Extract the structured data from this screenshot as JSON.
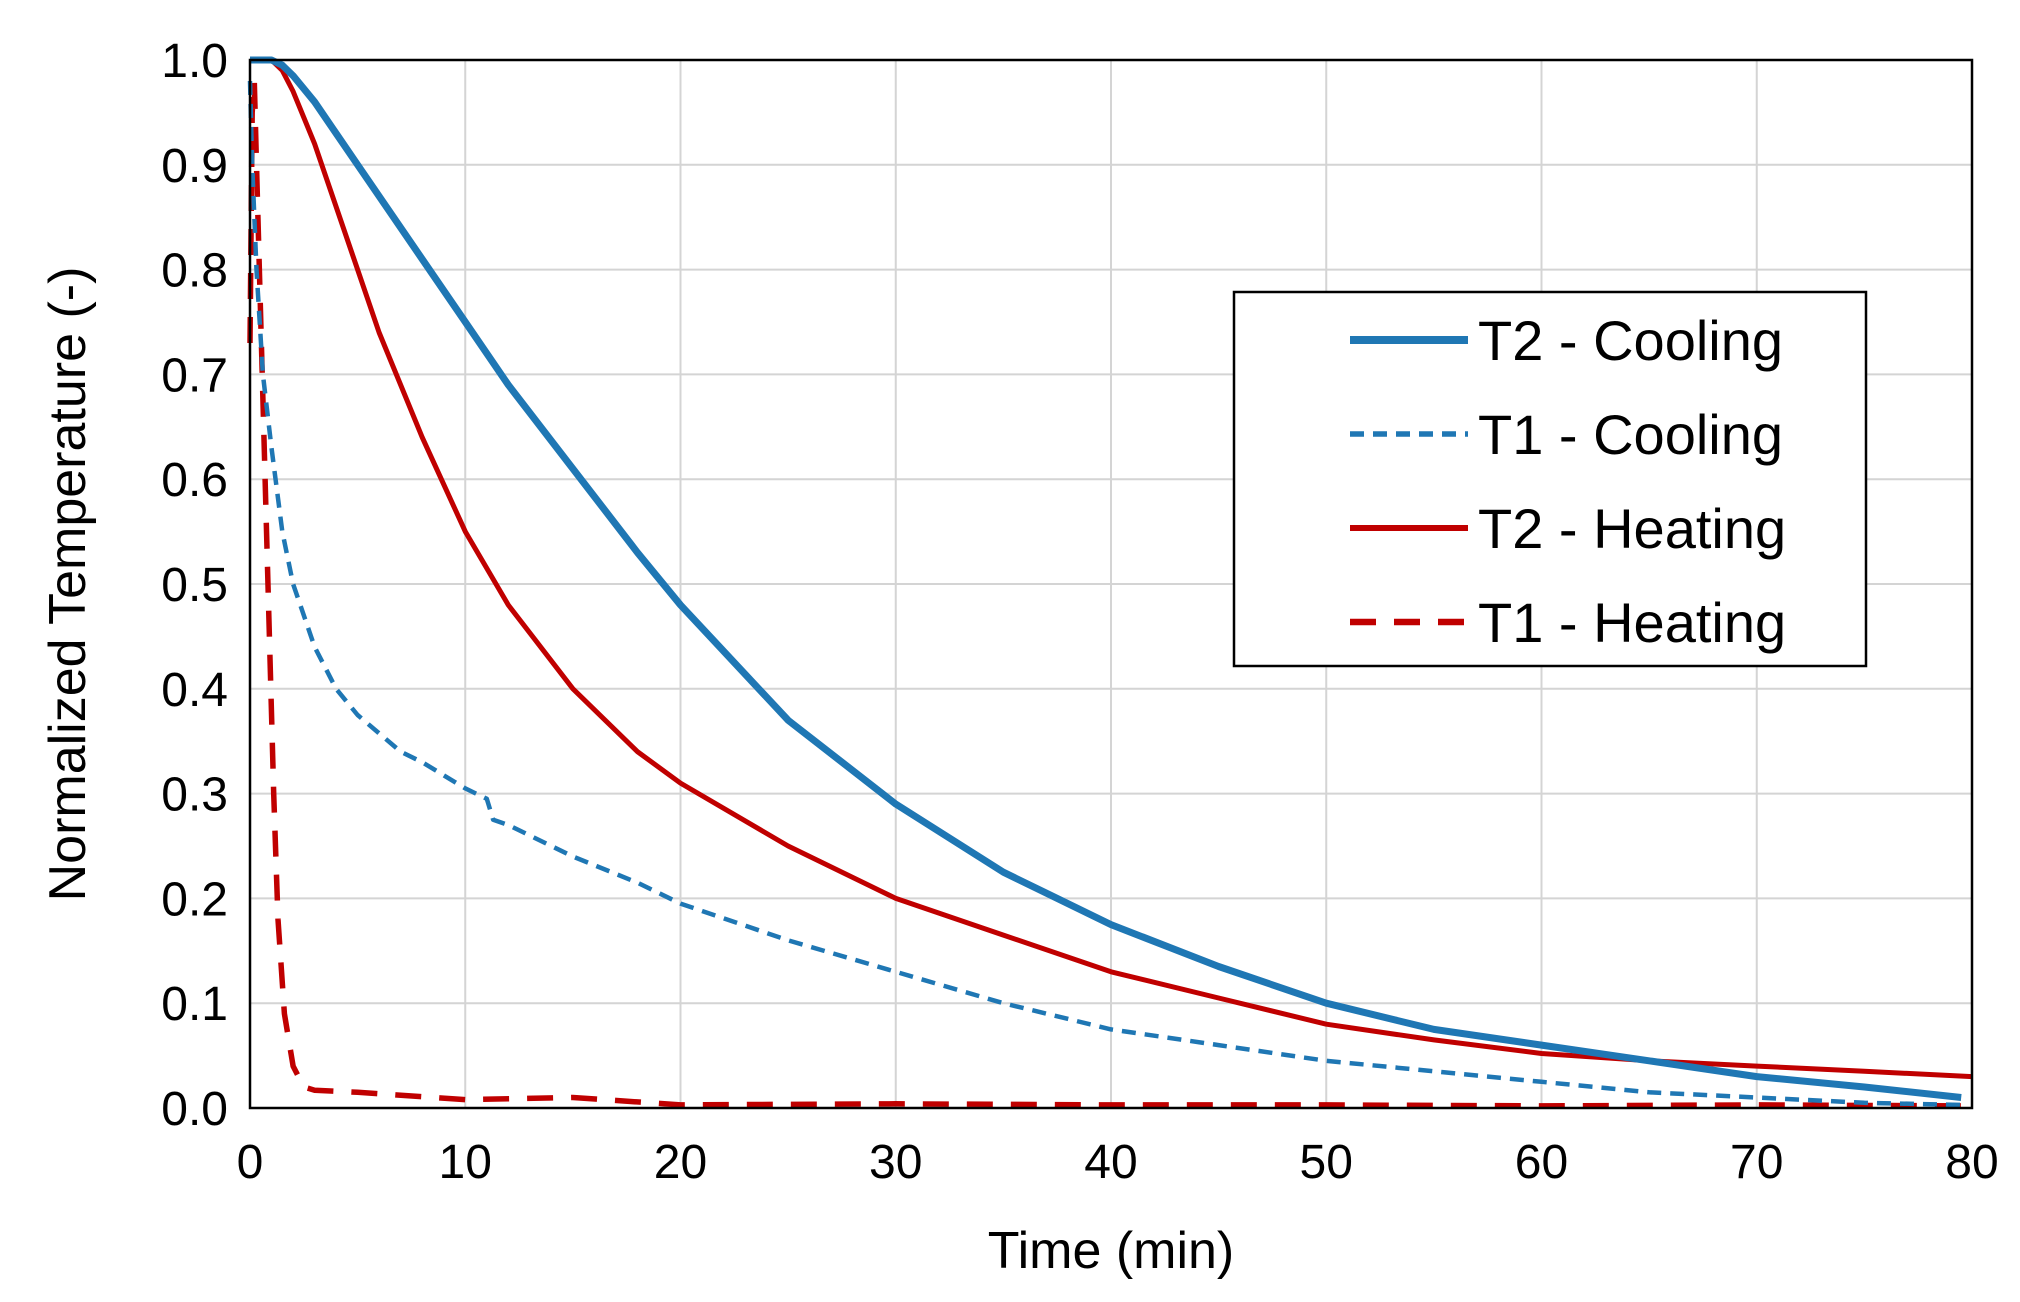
{
  "chart_data": {
    "type": "line",
    "title": "",
    "xlabel": "Time (min)",
    "ylabel": "Normalized  Temperature  (-)",
    "xlim": [
      0,
      80
    ],
    "ylim": [
      0.0,
      1.0
    ],
    "xticks": [
      "0",
      "10",
      "20",
      "30",
      "40",
      "50",
      "60",
      "70",
      "80"
    ],
    "yticks": [
      "0.0",
      "0.1",
      "0.2",
      "0.3",
      "0.4",
      "0.5",
      "0.6",
      "0.7",
      "0.8",
      "0.9",
      "1.0"
    ],
    "grid": true,
    "legend_position": "right",
    "series": [
      {
        "name": "T2 - Cooling",
        "color": "#1f77b4",
        "style": "solid-thick",
        "x": [
          0,
          0.5,
          1,
          1.5,
          2,
          3,
          4,
          5,
          6,
          8,
          10,
          12,
          15,
          18,
          20,
          25,
          30,
          35,
          40,
          45,
          50,
          55,
          60,
          65,
          70,
          75,
          79.5
        ],
        "y": [
          1.0,
          1.0,
          1.0,
          0.995,
          0.985,
          0.96,
          0.93,
          0.9,
          0.87,
          0.81,
          0.75,
          0.69,
          0.61,
          0.53,
          0.48,
          0.37,
          0.29,
          0.225,
          0.175,
          0.135,
          0.1,
          0.075,
          0.06,
          0.045,
          0.03,
          0.02,
          0.01
        ]
      },
      {
        "name": "T1 - Cooling",
        "color": "#1f77b4",
        "style": "dashed-fine",
        "x": [
          0,
          0.1,
          0.3,
          0.6,
          1,
          1.5,
          2,
          3,
          4,
          5,
          7,
          8,
          10,
          11,
          11.3,
          12,
          15,
          18,
          20,
          25,
          30,
          35,
          40,
          45,
          50,
          55,
          60,
          65,
          70,
          75,
          79.5
        ],
        "y": [
          0.98,
          0.9,
          0.8,
          0.7,
          0.63,
          0.55,
          0.5,
          0.44,
          0.4,
          0.375,
          0.34,
          0.33,
          0.305,
          0.295,
          0.275,
          0.27,
          0.24,
          0.215,
          0.195,
          0.16,
          0.13,
          0.1,
          0.075,
          0.06,
          0.045,
          0.035,
          0.025,
          0.015,
          0.01,
          0.005,
          0.003
        ]
      },
      {
        "name": "T2 - Heating",
        "color": "#c00000",
        "style": "solid",
        "x": [
          0,
          0.3,
          0.6,
          1,
          1.5,
          2,
          3,
          4,
          5,
          6,
          8,
          10,
          12,
          15,
          18,
          20,
          25,
          30,
          35,
          40,
          45,
          50,
          55,
          60,
          65,
          70,
          75,
          80
        ],
        "y": [
          1.0,
          1.0,
          1.0,
          1.0,
          0.99,
          0.97,
          0.92,
          0.86,
          0.8,
          0.74,
          0.64,
          0.55,
          0.48,
          0.4,
          0.34,
          0.31,
          0.25,
          0.2,
          0.165,
          0.13,
          0.105,
          0.08,
          0.065,
          0.052,
          0.045,
          0.04,
          0.035,
          0.03
        ]
      },
      {
        "name": "T1 - Heating",
        "color": "#c00000",
        "style": "dashed",
        "x": [
          0,
          0.1,
          0.2,
          0.3,
          0.5,
          0.7,
          0.9,
          1.1,
          1.3,
          1.6,
          2,
          2.5,
          3,
          5,
          10,
          15,
          20,
          30,
          40,
          50,
          60,
          70,
          80
        ],
        "y": [
          0.73,
          0.95,
          0.98,
          0.9,
          0.75,
          0.6,
          0.45,
          0.3,
          0.18,
          0.09,
          0.04,
          0.02,
          0.017,
          0.015,
          0.008,
          0.01,
          0.003,
          0.004,
          0.003,
          0.003,
          0.002,
          0.003,
          0.002
        ]
      }
    ]
  }
}
